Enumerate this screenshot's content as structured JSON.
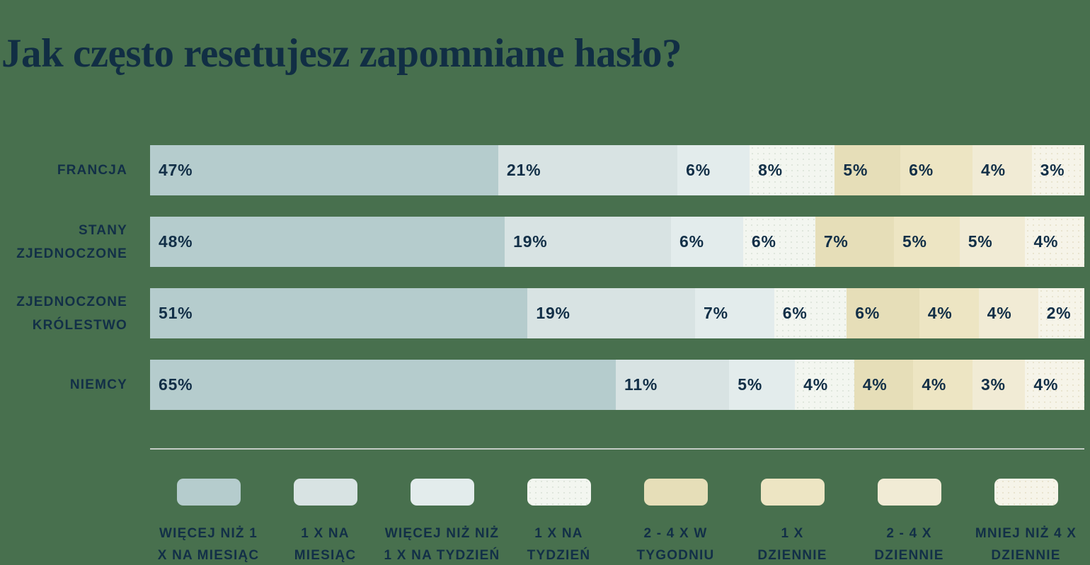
{
  "title": "Jak często resetujesz zapomniane hasło?",
  "colors": {
    "background": "#48704e",
    "text_navy": "#122f47",
    "divider": "#c3cbc4"
  },
  "chart_data": {
    "type": "bar",
    "variant": "horizontal-stacked",
    "title": "Jak często resetujesz zapomniane hasło?",
    "unit": "%",
    "value_range": [
      0,
      100
    ],
    "grid": false,
    "legend_position": "bottom",
    "categories": [
      {
        "name": "FRANCJA",
        "lines": [
          "FRANCJA"
        ]
      },
      {
        "name": "STANY ZJEDNOCZONE",
        "lines": [
          "STANY",
          "ZJEDNOCZONE"
        ]
      },
      {
        "name": "ZJEDNOCZONE KRÓLESTWO",
        "lines": [
          "ZJEDNOCZONE",
          "KRÓLESTWO"
        ]
      },
      {
        "name": "NIEMCY",
        "lines": [
          "NIEMCY"
        ]
      }
    ],
    "series": [
      {
        "name": "WIĘCEJ NIŻ 1 X NA MIESIĄC",
        "legend_lines": [
          "WIĘCEJ NIŻ 1",
          "X NA MIESIĄC"
        ],
        "color": "#b5cccd",
        "dot_color": null,
        "values": [
          47,
          48,
          51,
          65
        ]
      },
      {
        "name": "1 X NA MIESIĄC",
        "legend_lines": [
          "1 X NA",
          "MIESIĄC"
        ],
        "color": "#d8e3e3",
        "dot_color": null,
        "values": [
          21,
          19,
          19,
          11
        ]
      },
      {
        "name": "WIĘCEJ NIŻ NIŻ 1 X NA TYDZIEŃ",
        "legend_lines": [
          "WIĘCEJ NIŻ NIŻ",
          "1 X NA TYDZIEŃ"
        ],
        "color": "#e3ecec",
        "dot_color": null,
        "values": [
          6,
          6,
          7,
          5
        ]
      },
      {
        "name": "1 X NA TYDZIEŃ",
        "legend_lines": [
          "1 X NA",
          "TYDZIEŃ"
        ],
        "color": "#f3f6f0",
        "dot_color": "#dfe6dc",
        "values": [
          8,
          6,
          6,
          4
        ]
      },
      {
        "name": "2 - 4 X W TYGODNIU",
        "legend_lines": [
          "2 - 4 X W",
          "TYGODNIU"
        ],
        "color": "#e6deb8",
        "dot_color": null,
        "values": [
          5,
          7,
          6,
          4
        ]
      },
      {
        "name": "1 X DZIENNIE",
        "legend_lines": [
          "1 X",
          "DZIENNIE"
        ],
        "color": "#ede5c3",
        "dot_color": null,
        "values": [
          6,
          5,
          4,
          4
        ]
      },
      {
        "name": "2 - 4 X DZIENNIE",
        "legend_lines": [
          "2 - 4 X",
          "DZIENNIE"
        ],
        "color": "#f1ebd5",
        "dot_color": null,
        "values": [
          4,
          5,
          4,
          3
        ]
      },
      {
        "name": "MNIEJ NIŻ 4 X DZIENNIE",
        "legend_lines": [
          "MNIEJ NIŻ 4 X",
          "DZIENNIE"
        ],
        "color": "#f6f4e9",
        "dot_color": "#e9e4cf",
        "values": [
          3,
          4,
          2,
          4
        ]
      }
    ]
  }
}
